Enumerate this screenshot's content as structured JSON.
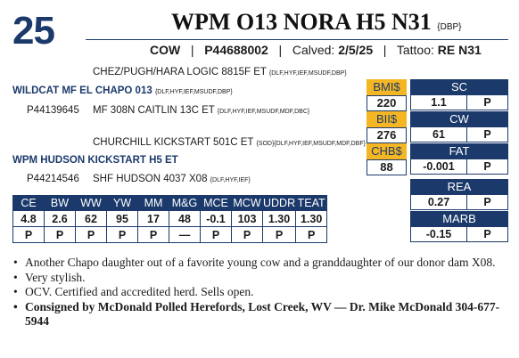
{
  "lot_number": "25",
  "name": "WPM O13 NORA H5 N31",
  "name_suffix": "{DBP}",
  "subline": {
    "sex": "COW",
    "reg": "P44688002",
    "calved_label": "Calved:",
    "calved": "2/5/25",
    "tattoo_label": "Tattoo:",
    "tattoo": "RE N31"
  },
  "pedigree": {
    "sire_sire": "CHEZ/PUGH/HARA LOGIC 8815F ET",
    "sire_sire_codes": "{DLF,HYF,IEF,MSUDF,DBP}",
    "sire": "WILDCAT MF EL CHAPO 013",
    "sire_codes": "{DLF,HYF,IEF,MSUDF,DBP}",
    "sire_reg": "P44139645",
    "sire_dam": "MF 308N CAITLIN 13C ET",
    "sire_dam_codes": "{DLF,HYF,IEF,MSUDF,MDF,DBC}",
    "dam_sire": "CHURCHILL KICKSTART 501C ET",
    "dam_sire_codes": "{SOD}{DLF,HYF,IEF,MSUDF,MDF,DBF}",
    "dam": "WPM HUDSON KICKSTART H5 ET",
    "dam_reg": "P44214546",
    "dam_dam": "SHF HUDSON 4037 X08",
    "dam_dam_codes": "{DLF,HYF,IEF}"
  },
  "indexes": [
    {
      "label": "BMI$",
      "value": "220"
    },
    {
      "label": "BII$",
      "value": "276"
    },
    {
      "label": "CHB$",
      "value": "88"
    }
  ],
  "carcass": [
    {
      "label": "SC",
      "value": "1.1",
      "p": "P"
    },
    {
      "label": "CW",
      "value": "61",
      "p": "P"
    },
    {
      "label": "FAT",
      "value": "-0.001",
      "p": "P"
    },
    {
      "label": "REA",
      "value": "0.27",
      "p": "P"
    },
    {
      "label": "MARB",
      "value": "-0.15",
      "p": "P"
    }
  ],
  "epd": {
    "headers": [
      "CE",
      "BW",
      "WW",
      "YW",
      "MM",
      "M&G",
      "MCE",
      "MCW",
      "UDDR",
      "TEAT"
    ],
    "values": [
      "4.8",
      "2.6",
      "62",
      "95",
      "17",
      "48",
      "-0.1",
      "103",
      "1.30",
      "1.30"
    ],
    "flags": [
      "P",
      "P",
      "P",
      "P",
      "P",
      "—",
      "P",
      "P",
      "P",
      "P"
    ]
  },
  "notes": [
    "Another Chapo daughter out of a favorite young cow and a granddaughter of our donor dam X08.",
    "Very stylish.",
    "OCV. Certified and accredited herd. Sells open.",
    "Consigned by McDonald Polled Herefords, Lost Creek, WV — Dr. Mike McDonald 304-677-5944"
  ],
  "colors": {
    "navy": "#1b3a6b",
    "gold": "#f4b623"
  }
}
